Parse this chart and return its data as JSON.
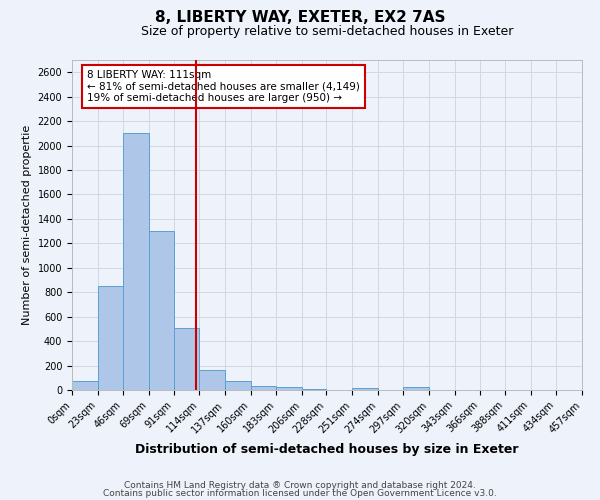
{
  "title": "8, LIBERTY WAY, EXETER, EX2 7AS",
  "subtitle": "Size of property relative to semi-detached houses in Exeter",
  "xlabel": "Distribution of semi-detached houses by size in Exeter",
  "ylabel": "Number of semi-detached propertie",
  "footnote1": "Contains HM Land Registry data ® Crown copyright and database right 2024.",
  "footnote2": "Contains public sector information licensed under the Open Government Licence v3.0.",
  "bin_labels": [
    "0sqm",
    "23sqm",
    "46sqm",
    "69sqm",
    "91sqm",
    "114sqm",
    "137sqm",
    "160sqm",
    "183sqm",
    "206sqm",
    "228sqm",
    "251sqm",
    "274sqm",
    "297sqm",
    "320sqm",
    "343sqm",
    "366sqm",
    "388sqm",
    "411sqm",
    "434sqm",
    "457sqm"
  ],
  "bin_edges": [
    0,
    23,
    46,
    69,
    91,
    114,
    137,
    160,
    183,
    206,
    228,
    251,
    274,
    297,
    320,
    343,
    366,
    388,
    411,
    434,
    457
  ],
  "bar_heights": [
    75,
    850,
    2100,
    1300,
    510,
    165,
    75,
    35,
    22,
    10,
    0,
    20,
    0,
    22,
    0,
    0,
    0,
    0,
    0,
    0
  ],
  "bar_color": "#aec6e8",
  "bar_edge_color": "#5a9fd4",
  "grid_color": "#d0d8e8",
  "bg_color": "#eef2fa",
  "vline_x": 111,
  "vline_color": "#cc0000",
  "annotation_text": "8 LIBERTY WAY: 111sqm\n← 81% of semi-detached houses are smaller (4,149)\n19% of semi-detached houses are larger (950) →",
  "annotation_box_edge": "#cc0000",
  "ylim": [
    0,
    2700
  ],
  "yticks": [
    0,
    200,
    400,
    600,
    800,
    1000,
    1200,
    1400,
    1600,
    1800,
    2000,
    2200,
    2400,
    2600
  ],
  "title_fontsize": 11,
  "subtitle_fontsize": 9,
  "xlabel_fontsize": 9,
  "ylabel_fontsize": 8,
  "tick_fontsize": 7,
  "footnote_fontsize": 6.5,
  "annot_fontsize": 7.5
}
